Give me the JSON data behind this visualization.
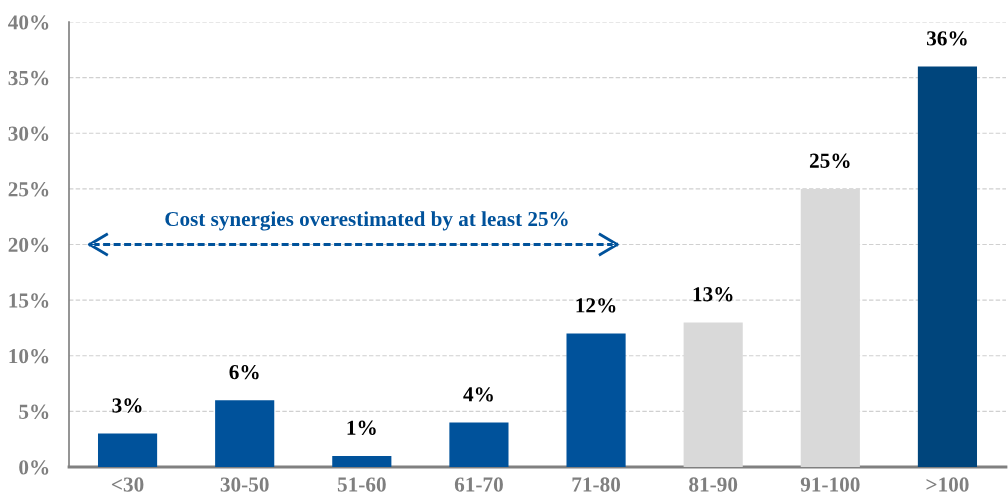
{
  "chart_data": {
    "type": "bar",
    "categories": [
      "<30",
      "30-50",
      "51-60",
      "61-70",
      "71-80",
      "81-90",
      "91-100",
      ">100"
    ],
    "values": [
      3,
      6,
      1,
      4,
      12,
      13,
      25,
      36
    ],
    "colors": [
      "#00529b",
      "#00529b",
      "#00529b",
      "#00529b",
      "#00529b",
      "#d9d9d9",
      "#d9d9d9",
      "#00457c"
    ],
    "value_labels": [
      "3%",
      "6%",
      "1%",
      "4%",
      "12%",
      "13%",
      "25%",
      "36%"
    ],
    "ylim": [
      0,
      40
    ],
    "yticks": [
      {
        "value": 0,
        "label": "0%"
      },
      {
        "value": 5,
        "label": "5%"
      },
      {
        "value": 10,
        "label": "10%"
      },
      {
        "value": 15,
        "label": "15%"
      },
      {
        "value": 20,
        "label": "20%"
      },
      {
        "value": 25,
        "label": "25%"
      },
      {
        "value": 30,
        "label": "30%"
      },
      {
        "value": 35,
        "label": "35%"
      },
      {
        "value": 40,
        "label": "40%"
      }
    ],
    "grid": "y",
    "legend": false,
    "annotations": [
      "Cost synergies overestimated by at least 25%"
    ]
  }
}
